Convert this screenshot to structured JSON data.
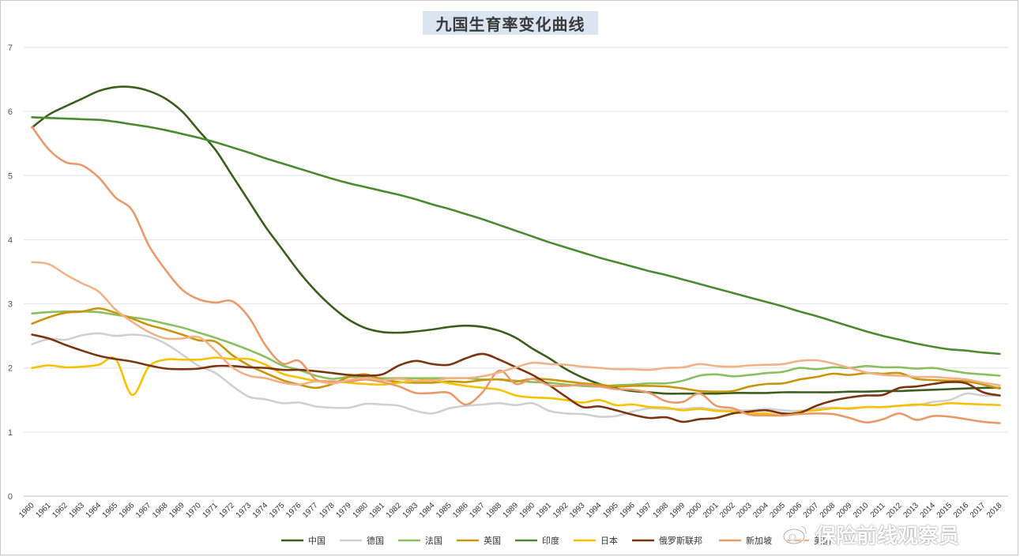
{
  "chart_data": {
    "type": "line",
    "title": "九国生育率变化曲线",
    "xlabel": "",
    "ylabel": "",
    "ylim": [
      0,
      7
    ],
    "yticks": [
      0,
      1,
      2,
      3,
      4,
      5,
      6,
      7
    ],
    "grid": true,
    "legend_position": "bottom",
    "x": [
      1960,
      1961,
      1962,
      1963,
      1964,
      1965,
      1966,
      1967,
      1968,
      1969,
      1970,
      1971,
      1972,
      1973,
      1974,
      1975,
      1976,
      1977,
      1978,
      1979,
      1980,
      1981,
      1982,
      1983,
      1984,
      1985,
      1986,
      1987,
      1988,
      1989,
      1990,
      1991,
      1992,
      1993,
      1994,
      1995,
      1996,
      1997,
      1998,
      1999,
      2000,
      2001,
      2002,
      2003,
      2004,
      2005,
      2006,
      2007,
      2008,
      2009,
      2010,
      2011,
      2012,
      2013,
      2014,
      2015,
      2016,
      2017,
      2018
    ],
    "series": [
      {
        "name": "中国",
        "color": "#3b5e1e",
        "values": [
          5.75,
          5.95,
          6.08,
          6.2,
          6.32,
          6.38,
          6.38,
          6.32,
          6.2,
          6.0,
          5.7,
          5.4,
          5.0,
          4.6,
          4.2,
          3.85,
          3.5,
          3.2,
          2.95,
          2.75,
          2.62,
          2.56,
          2.55,
          2.57,
          2.6,
          2.64,
          2.66,
          2.64,
          2.58,
          2.47,
          2.3,
          2.15,
          1.98,
          1.85,
          1.75,
          1.68,
          1.64,
          1.62,
          1.6,
          1.6,
          1.6,
          1.6,
          1.61,
          1.61,
          1.61,
          1.62,
          1.62,
          1.62,
          1.62,
          1.63,
          1.63,
          1.64,
          1.64,
          1.65,
          1.66,
          1.67,
          1.68,
          1.69,
          1.69
        ]
      },
      {
        "name": "德国",
        "color": "#d0d0d0",
        "values": [
          2.37,
          2.45,
          2.44,
          2.51,
          2.54,
          2.5,
          2.52,
          2.49,
          2.38,
          2.21,
          2.03,
          1.92,
          1.72,
          1.55,
          1.51,
          1.45,
          1.46,
          1.4,
          1.38,
          1.38,
          1.44,
          1.43,
          1.41,
          1.33,
          1.29,
          1.37,
          1.41,
          1.43,
          1.45,
          1.42,
          1.45,
          1.33,
          1.29,
          1.28,
          1.24,
          1.25,
          1.32,
          1.37,
          1.36,
          1.36,
          1.38,
          1.35,
          1.34,
          1.34,
          1.36,
          1.34,
          1.33,
          1.37,
          1.38,
          1.36,
          1.39,
          1.39,
          1.41,
          1.42,
          1.47,
          1.5,
          1.6,
          1.57,
          1.57
        ]
      },
      {
        "name": "法国",
        "color": "#8cbf5f",
        "values": [
          2.85,
          2.87,
          2.88,
          2.88,
          2.87,
          2.83,
          2.79,
          2.75,
          2.69,
          2.63,
          2.55,
          2.47,
          2.38,
          2.28,
          2.17,
          2.04,
          1.97,
          1.88,
          1.83,
          1.86,
          1.85,
          1.84,
          1.84,
          1.84,
          1.84,
          1.84,
          1.84,
          1.82,
          1.82,
          1.8,
          1.78,
          1.77,
          1.74,
          1.72,
          1.71,
          1.73,
          1.74,
          1.76,
          1.76,
          1.8,
          1.88,
          1.9,
          1.87,
          1.89,
          1.92,
          1.94,
          2.0,
          1.98,
          2.01,
          2.0,
          2.03,
          2.01,
          2.01,
          1.99,
          2.0,
          1.96,
          1.92,
          1.9,
          1.88
        ]
      },
      {
        "name": "英国",
        "color": "#c8960c",
        "values": [
          2.69,
          2.79,
          2.86,
          2.88,
          2.93,
          2.86,
          2.77,
          2.67,
          2.6,
          2.52,
          2.43,
          2.41,
          2.2,
          2.04,
          1.92,
          1.81,
          1.74,
          1.69,
          1.75,
          1.86,
          1.9,
          1.82,
          1.78,
          1.77,
          1.77,
          1.79,
          1.78,
          1.81,
          1.82,
          1.79,
          1.83,
          1.82,
          1.79,
          1.76,
          1.74,
          1.71,
          1.72,
          1.72,
          1.71,
          1.68,
          1.64,
          1.63,
          1.64,
          1.71,
          1.75,
          1.76,
          1.82,
          1.86,
          1.91,
          1.89,
          1.92,
          1.91,
          1.92,
          1.83,
          1.81,
          1.8,
          1.79,
          1.74,
          1.68
        ]
      },
      {
        "name": "印度",
        "color": "#4c8a32",
        "values": [
          5.91,
          5.9,
          5.89,
          5.88,
          5.87,
          5.84,
          5.8,
          5.76,
          5.71,
          5.65,
          5.59,
          5.52,
          5.44,
          5.36,
          5.27,
          5.19,
          5.11,
          5.03,
          4.95,
          4.88,
          4.82,
          4.76,
          4.7,
          4.63,
          4.55,
          4.48,
          4.4,
          4.32,
          4.23,
          4.14,
          4.05,
          3.96,
          3.88,
          3.8,
          3.72,
          3.65,
          3.58,
          3.51,
          3.45,
          3.38,
          3.31,
          3.24,
          3.17,
          3.1,
          3.03,
          2.96,
          2.88,
          2.81,
          2.73,
          2.65,
          2.57,
          2.5,
          2.44,
          2.38,
          2.33,
          2.29,
          2.27,
          2.24,
          2.22
        ]
      },
      {
        "name": "日本",
        "color": "#f5c200",
        "values": [
          2.0,
          2.04,
          2.01,
          2.02,
          2.05,
          2.14,
          1.58,
          2.02,
          2.13,
          2.13,
          2.13,
          2.16,
          2.14,
          2.14,
          2.05,
          1.91,
          1.85,
          1.8,
          1.79,
          1.77,
          1.75,
          1.74,
          1.77,
          1.8,
          1.81,
          1.76,
          1.72,
          1.69,
          1.66,
          1.57,
          1.54,
          1.53,
          1.5,
          1.46,
          1.5,
          1.42,
          1.43,
          1.39,
          1.38,
          1.34,
          1.36,
          1.33,
          1.32,
          1.29,
          1.29,
          1.26,
          1.32,
          1.34,
          1.37,
          1.37,
          1.39,
          1.39,
          1.41,
          1.43,
          1.42,
          1.45,
          1.44,
          1.43,
          1.42
        ]
      },
      {
        "name": "俄罗斯联邦",
        "color": "#7b3510",
        "values": [
          2.52,
          2.46,
          2.36,
          2.27,
          2.19,
          2.14,
          2.1,
          2.04,
          1.99,
          1.98,
          1.99,
          2.03,
          2.03,
          2.01,
          2.0,
          1.97,
          1.97,
          1.95,
          1.92,
          1.89,
          1.88,
          1.9,
          2.04,
          2.11,
          2.06,
          2.05,
          2.15,
          2.22,
          2.13,
          2.01,
          1.89,
          1.73,
          1.55,
          1.39,
          1.4,
          1.34,
          1.27,
          1.22,
          1.23,
          1.16,
          1.2,
          1.22,
          1.29,
          1.32,
          1.34,
          1.29,
          1.3,
          1.41,
          1.49,
          1.54,
          1.57,
          1.58,
          1.69,
          1.71,
          1.75,
          1.78,
          1.76,
          1.62,
          1.57
        ]
      },
      {
        "name": "新加坡",
        "color": "#e89a6a",
        "values": [
          5.76,
          5.41,
          5.21,
          5.16,
          4.97,
          4.66,
          4.46,
          3.91,
          3.53,
          3.22,
          3.07,
          3.02,
          3.04,
          2.79,
          2.35,
          2.07,
          2.11,
          1.82,
          1.79,
          1.79,
          1.82,
          1.78,
          1.71,
          1.61,
          1.61,
          1.61,
          1.43,
          1.62,
          1.96,
          1.75,
          1.83,
          1.73,
          1.72,
          1.74,
          1.71,
          1.67,
          1.66,
          1.61,
          1.48,
          1.47,
          1.6,
          1.41,
          1.37,
          1.27,
          1.26,
          1.26,
          1.28,
          1.29,
          1.28,
          1.22,
          1.15,
          1.2,
          1.29,
          1.19,
          1.25,
          1.24,
          1.2,
          1.16,
          1.14
        ]
      },
      {
        "name": "美国",
        "color": "#f2b288",
        "values": [
          3.65,
          3.62,
          3.46,
          3.32,
          3.19,
          2.91,
          2.72,
          2.56,
          2.46,
          2.46,
          2.48,
          2.27,
          2.01,
          1.88,
          1.84,
          1.77,
          1.74,
          1.79,
          1.76,
          1.81,
          1.84,
          1.81,
          1.83,
          1.8,
          1.8,
          1.84,
          1.84,
          1.87,
          1.93,
          2.01,
          2.08,
          2.06,
          2.05,
          2.02,
          2.0,
          1.98,
          1.98,
          1.97,
          2.0,
          2.01,
          2.06,
          2.03,
          2.02,
          2.04,
          2.05,
          2.06,
          2.11,
          2.12,
          2.07,
          2.0,
          1.93,
          1.89,
          1.88,
          1.86,
          1.86,
          1.84,
          1.82,
          1.77,
          1.73
        ]
      }
    ]
  },
  "watermark": {
    "icon": "weibo-icon",
    "text": "保险前线观察员"
  }
}
